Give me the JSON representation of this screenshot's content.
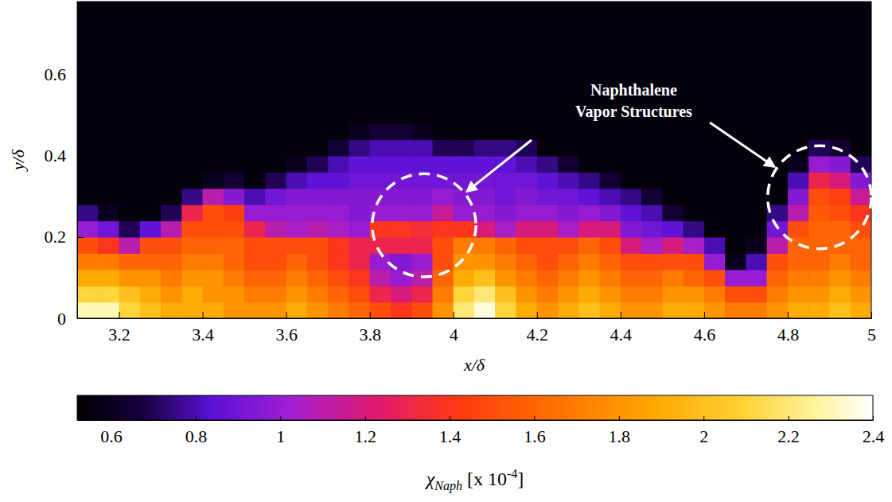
{
  "chart_data": {
    "type": "heatmap",
    "x_label": "x/δ",
    "y_label": "y/δ",
    "xlim": [
      3.1,
      5.0
    ],
    "ylim": [
      0,
      0.78
    ],
    "xticks": [
      3.2,
      3.4,
      3.6,
      3.8,
      4,
      4.2,
      4.4,
      4.6,
      4.8,
      5
    ],
    "yticks": [
      0,
      0.2,
      0.4,
      0.6
    ],
    "x": [
      3.125,
      3.175,
      3.225,
      3.275,
      3.325,
      3.375,
      3.425,
      3.475,
      3.525,
      3.575,
      3.625,
      3.675,
      3.725,
      3.775,
      3.825,
      3.875,
      3.925,
      3.975,
      4.025,
      4.075,
      4.125,
      4.175,
      4.225,
      4.275,
      4.325,
      4.375,
      4.425,
      4.475,
      4.525,
      4.575,
      4.625,
      4.675,
      4.725,
      4.775,
      4.825,
      4.875,
      4.925,
      4.975
    ],
    "y": [
      0.02,
      0.06,
      0.1,
      0.14,
      0.18,
      0.22,
      0.26,
      0.3,
      0.34,
      0.38,
      0.42,
      0.46,
      0.5,
      0.54,
      0.58,
      0.62,
      0.66,
      0.7,
      0.74,
      0.78
    ],
    "z": [
      [
        2.3,
        2.3,
        2.1,
        2.0,
        1.9,
        1.9,
        1.9,
        1.8,
        1.8,
        1.8,
        1.9,
        1.8,
        1.7,
        1.6,
        1.5,
        1.4,
        1.5,
        1.8,
        2.2,
        2.35,
        2.1,
        1.9,
        1.8,
        1.9,
        2.0,
        1.9,
        1.8,
        1.8,
        1.9,
        1.9,
        1.8,
        1.7,
        1.7,
        1.8,
        1.9,
        1.9,
        2.0,
        1.9
      ],
      [
        2.1,
        2.1,
        2.0,
        1.9,
        1.8,
        1.9,
        1.8,
        1.8,
        1.7,
        1.7,
        1.8,
        1.7,
        1.6,
        1.5,
        1.3,
        1.2,
        1.3,
        1.7,
        2.1,
        2.2,
        2.0,
        1.8,
        1.7,
        1.8,
        1.9,
        1.8,
        1.7,
        1.7,
        1.8,
        1.8,
        1.7,
        1.5,
        1.5,
        1.7,
        1.8,
        1.8,
        1.9,
        1.8
      ],
      [
        1.9,
        1.9,
        1.8,
        1.8,
        1.7,
        1.8,
        1.8,
        1.7,
        1.6,
        1.6,
        1.7,
        1.6,
        1.5,
        1.4,
        1.1,
        1.0,
        1.1,
        1.6,
        1.9,
        2.0,
        1.8,
        1.7,
        1.6,
        1.7,
        1.8,
        1.7,
        1.6,
        1.6,
        1.7,
        1.6,
        1.5,
        1.0,
        1.0,
        1.6,
        1.7,
        1.7,
        1.8,
        1.7
      ],
      [
        1.7,
        1.7,
        1.6,
        1.6,
        1.6,
        1.7,
        1.7,
        1.6,
        1.5,
        1.5,
        1.6,
        1.5,
        1.4,
        1.3,
        1.0,
        0.95,
        1.0,
        1.5,
        1.8,
        1.8,
        1.7,
        1.6,
        1.5,
        1.6,
        1.7,
        1.6,
        1.5,
        1.5,
        1.5,
        1.5,
        1.0,
        0.6,
        0.8,
        1.5,
        1.6,
        1.6,
        1.7,
        1.6
      ],
      [
        1.5,
        1.4,
        1.1,
        1.5,
        1.5,
        1.6,
        1.6,
        1.6,
        1.5,
        1.5,
        1.5,
        1.5,
        1.4,
        1.3,
        1.3,
        1.3,
        1.3,
        1.5,
        1.7,
        1.7,
        1.6,
        1.5,
        1.5,
        1.5,
        1.6,
        1.5,
        1.2,
        1.05,
        1.2,
        1.05,
        0.8,
        0.55,
        0.6,
        1.1,
        1.6,
        1.6,
        1.6,
        1.6
      ],
      [
        1.0,
        0.9,
        0.7,
        0.85,
        1.1,
        1.5,
        1.5,
        1.5,
        1.3,
        1.1,
        1.05,
        1.1,
        1.05,
        1.0,
        1.4,
        1.4,
        1.35,
        1.4,
        1.4,
        1.2,
        1.05,
        1.2,
        1.2,
        1.05,
        1.2,
        1.2,
        0.95,
        0.9,
        0.85,
        0.75,
        0.55,
        0.55,
        0.55,
        0.9,
        1.5,
        1.6,
        1.6,
        1.5
      ],
      [
        0.75,
        0.6,
        0.55,
        0.55,
        0.7,
        1.3,
        1.5,
        1.45,
        1.0,
        1.0,
        1.0,
        1.0,
        1.0,
        0.95,
        1.0,
        1.0,
        1.0,
        1.15,
        1.0,
        1.0,
        0.95,
        1.0,
        1.0,
        0.95,
        1.0,
        0.95,
        0.85,
        0.8,
        0.65,
        0.55,
        0.55,
        0.55,
        0.55,
        0.75,
        1.1,
        1.55,
        1.5,
        1.4
      ],
      [
        0.55,
        0.55,
        0.55,
        0.55,
        0.55,
        0.75,
        1.1,
        0.95,
        0.8,
        0.9,
        0.95,
        0.95,
        0.95,
        0.95,
        0.95,
        0.95,
        0.95,
        1.0,
        0.95,
        0.95,
        0.9,
        0.95,
        0.9,
        0.9,
        0.85,
        0.8,
        0.75,
        0.65,
        0.55,
        0.55,
        0.55,
        0.55,
        0.55,
        0.55,
        0.95,
        1.5,
        1.45,
        1.15
      ],
      [
        0.55,
        0.55,
        0.55,
        0.55,
        0.55,
        0.55,
        0.6,
        0.65,
        0.55,
        0.7,
        0.8,
        0.85,
        0.85,
        0.9,
        0.9,
        0.9,
        0.9,
        0.9,
        0.9,
        0.9,
        0.9,
        0.9,
        0.85,
        0.8,
        0.75,
        0.65,
        0.55,
        0.55,
        0.55,
        0.55,
        0.55,
        0.55,
        0.55,
        0.55,
        0.8,
        1.3,
        1.2,
        0.95
      ],
      [
        0.55,
        0.55,
        0.55,
        0.55,
        0.55,
        0.55,
        0.55,
        0.55,
        0.55,
        0.55,
        0.6,
        0.7,
        0.8,
        0.85,
        0.85,
        0.85,
        0.85,
        0.85,
        0.85,
        0.85,
        0.85,
        0.8,
        0.75,
        0.65,
        0.55,
        0.55,
        0.55,
        0.55,
        0.55,
        0.55,
        0.55,
        0.55,
        0.55,
        0.55,
        0.6,
        1.0,
        0.95,
        0.7
      ],
      [
        0.55,
        0.55,
        0.55,
        0.55,
        0.55,
        0.55,
        0.55,
        0.55,
        0.55,
        0.55,
        0.55,
        0.55,
        0.65,
        0.75,
        0.8,
        0.8,
        0.8,
        0.7,
        0.7,
        0.75,
        0.75,
        0.7,
        0.55,
        0.55,
        0.55,
        0.55,
        0.55,
        0.55,
        0.55,
        0.55,
        0.55,
        0.55,
        0.55,
        0.55,
        0.55,
        0.7,
        0.65,
        0.55
      ],
      [
        0.55,
        0.55,
        0.55,
        0.55,
        0.55,
        0.55,
        0.55,
        0.55,
        0.55,
        0.55,
        0.55,
        0.55,
        0.55,
        0.6,
        0.65,
        0.65,
        0.6,
        0.55,
        0.55,
        0.55,
        0.55,
        0.55,
        0.55,
        0.55,
        0.55,
        0.55,
        0.55,
        0.55,
        0.55,
        0.55,
        0.55,
        0.55,
        0.55,
        0.55,
        0.55,
        0.55,
        0.55,
        0.55
      ],
      [
        0.55,
        0.55,
        0.55,
        0.55,
        0.55,
        0.55,
        0.55,
        0.55,
        0.55,
        0.55,
        0.55,
        0.55,
        0.55,
        0.55,
        0.55,
        0.55,
        0.55,
        0.55,
        0.55,
        0.55,
        0.55,
        0.55,
        0.55,
        0.55,
        0.55,
        0.55,
        0.55,
        0.55,
        0.55,
        0.55,
        0.55,
        0.55,
        0.55,
        0.55,
        0.55,
        0.55,
        0.55,
        0.55
      ],
      [
        0.55,
        0.55,
        0.55,
        0.55,
        0.55,
        0.55,
        0.55,
        0.55,
        0.55,
        0.55,
        0.55,
        0.55,
        0.55,
        0.55,
        0.55,
        0.55,
        0.55,
        0.55,
        0.55,
        0.55,
        0.55,
        0.55,
        0.55,
        0.55,
        0.55,
        0.55,
        0.55,
        0.55,
        0.55,
        0.55,
        0.55,
        0.55,
        0.55,
        0.55,
        0.55,
        0.55,
        0.55,
        0.55
      ],
      [
        0.55,
        0.55,
        0.55,
        0.55,
        0.55,
        0.55,
        0.55,
        0.55,
        0.55,
        0.55,
        0.55,
        0.55,
        0.55,
        0.55,
        0.55,
        0.55,
        0.55,
        0.55,
        0.55,
        0.55,
        0.55,
        0.55,
        0.55,
        0.55,
        0.55,
        0.55,
        0.55,
        0.55,
        0.55,
        0.55,
        0.55,
        0.55,
        0.55,
        0.55,
        0.55,
        0.55,
        0.55,
        0.55
      ],
      [
        0.55,
        0.55,
        0.55,
        0.55,
        0.55,
        0.55,
        0.55,
        0.55,
        0.55,
        0.55,
        0.55,
        0.55,
        0.55,
        0.55,
        0.55,
        0.55,
        0.55,
        0.55,
        0.55,
        0.55,
        0.55,
        0.55,
        0.55,
        0.55,
        0.55,
        0.55,
        0.55,
        0.55,
        0.55,
        0.55,
        0.55,
        0.55,
        0.55,
        0.55,
        0.55,
        0.55,
        0.55,
        0.55
      ],
      [
        0.55,
        0.55,
        0.55,
        0.55,
        0.55,
        0.55,
        0.55,
        0.55,
        0.55,
        0.55,
        0.55,
        0.55,
        0.55,
        0.55,
        0.55,
        0.55,
        0.55,
        0.55,
        0.55,
        0.55,
        0.55,
        0.55,
        0.55,
        0.55,
        0.55,
        0.55,
        0.55,
        0.55,
        0.55,
        0.55,
        0.55,
        0.55,
        0.55,
        0.55,
        0.55,
        0.55,
        0.55,
        0.55
      ],
      [
        0.55,
        0.55,
        0.55,
        0.55,
        0.55,
        0.55,
        0.55,
        0.55,
        0.55,
        0.55,
        0.55,
        0.55,
        0.55,
        0.55,
        0.55,
        0.55,
        0.55,
        0.55,
        0.55,
        0.55,
        0.55,
        0.55,
        0.55,
        0.55,
        0.55,
        0.55,
        0.55,
        0.55,
        0.55,
        0.55,
        0.55,
        0.55,
        0.55,
        0.55,
        0.55,
        0.55,
        0.55,
        0.55
      ],
      [
        0.55,
        0.55,
        0.55,
        0.55,
        0.55,
        0.55,
        0.55,
        0.55,
        0.55,
        0.55,
        0.55,
        0.55,
        0.55,
        0.55,
        0.55,
        0.55,
        0.55,
        0.55,
        0.55,
        0.55,
        0.55,
        0.55,
        0.55,
        0.55,
        0.55,
        0.55,
        0.55,
        0.55,
        0.55,
        0.55,
        0.55,
        0.55,
        0.55,
        0.55,
        0.55,
        0.55,
        0.55,
        0.55
      ],
      [
        0.55,
        0.55,
        0.55,
        0.55,
        0.55,
        0.55,
        0.55,
        0.55,
        0.55,
        0.55,
        0.55,
        0.55,
        0.55,
        0.55,
        0.55,
        0.55,
        0.55,
        0.55,
        0.55,
        0.55,
        0.55,
        0.55,
        0.55,
        0.55,
        0.55,
        0.55,
        0.55,
        0.55,
        0.55,
        0.55,
        0.55,
        0.55,
        0.55,
        0.55,
        0.55,
        0.55,
        0.55,
        0.55
      ]
    ],
    "colorbar": {
      "range": [
        0.52,
        2.4
      ],
      "ticks": [
        0.6,
        0.8,
        1,
        1.2,
        1.4,
        1.6,
        1.8,
        2,
        2.2,
        2.4
      ],
      "label": {
        "symbol": "χ",
        "subscript": "Naph",
        "text": "[x 10",
        "superscript": "-4",
        "end": "]"
      }
    },
    "annotation": {
      "text": [
        "Naphthalene",
        "Vapor Structures"
      ],
      "regions": [
        {
          "x": 3.93,
          "y": 0.229,
          "rx": 0.124,
          "ry": 0.127
        },
        {
          "x": 4.876,
          "y": 0.298,
          "rx": 0.124,
          "ry": 0.127
        }
      ]
    }
  }
}
